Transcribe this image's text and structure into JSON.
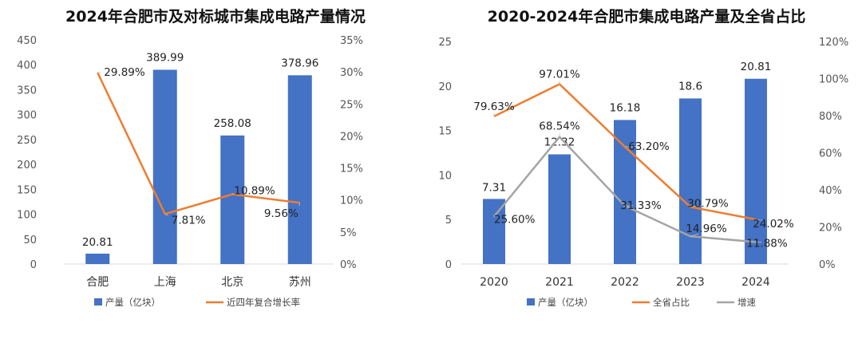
{
  "chart_data": [
    {
      "type": "bar+line",
      "title": "2024年合肥市及对标城市集成电路产量情况",
      "categories": [
        "合肥",
        "上海",
        "北京",
        "苏州"
      ],
      "bar_series": {
        "name": "产量（亿块）",
        "values": [
          20.81,
          389.99,
          258.08,
          378.96
        ],
        "labels": [
          "20.81",
          "389.99",
          "258.08",
          "378.96"
        ],
        "color": "#4472C4"
      },
      "line_series": [
        {
          "name": "近四年复合增长率",
          "values": [
            29.89,
            7.81,
            10.89,
            9.56
          ],
          "labels": [
            "29.89%",
            "7.81%",
            "10.89%",
            "9.56%"
          ],
          "color": "#ED7D31"
        }
      ],
      "y_left": {
        "min": 0,
        "max": 450,
        "step": 50,
        "ticks": [
          "0",
          "50",
          "100",
          "150",
          "200",
          "250",
          "300",
          "350",
          "400",
          "450"
        ]
      },
      "y_right": {
        "min": 0,
        "max": 35,
        "step": 5,
        "ticks": [
          "0%",
          "5%",
          "10%",
          "15%",
          "20%",
          "25%",
          "30%",
          "35%"
        ]
      },
      "legend": "bottom"
    },
    {
      "type": "bar+line",
      "title": "2020-2024年合肥市集成电路产量及全省占比",
      "categories": [
        "2020",
        "2021",
        "2022",
        "2023",
        "2024"
      ],
      "bar_series": {
        "name": "产量（亿块）",
        "values": [
          7.31,
          12.32,
          16.18,
          18.6,
          20.81
        ],
        "labels": [
          "7.31",
          "12.32",
          "16.18",
          "18.6",
          "20.81"
        ],
        "color": "#4472C4"
      },
      "line_series": [
        {
          "name": "全省占比",
          "values": [
            79.63,
            97.01,
            63.2,
            30.79,
            24.02
          ],
          "labels": [
            "79.63%",
            "97.01%",
            "63.20%",
            "30.79%",
            "24.02%"
          ],
          "color": "#ED7D31"
        },
        {
          "name": "增速",
          "values": [
            25.6,
            68.54,
            31.33,
            14.96,
            11.88
          ],
          "labels": [
            "25.60%",
            "68.54%",
            "31.33%",
            "14.96%",
            "11.88%"
          ],
          "color": "#A5A5A5"
        }
      ],
      "y_left": {
        "min": 0,
        "max": 25,
        "step": 5,
        "ticks": [
          "0",
          "5",
          "10",
          "15",
          "20",
          "25"
        ]
      },
      "y_right": {
        "min": 0,
        "max": 120,
        "step": 20,
        "ticks": [
          "0%",
          "20%",
          "40%",
          "60%",
          "80%",
          "100%",
          "120%"
        ]
      },
      "legend": "bottom"
    }
  ]
}
